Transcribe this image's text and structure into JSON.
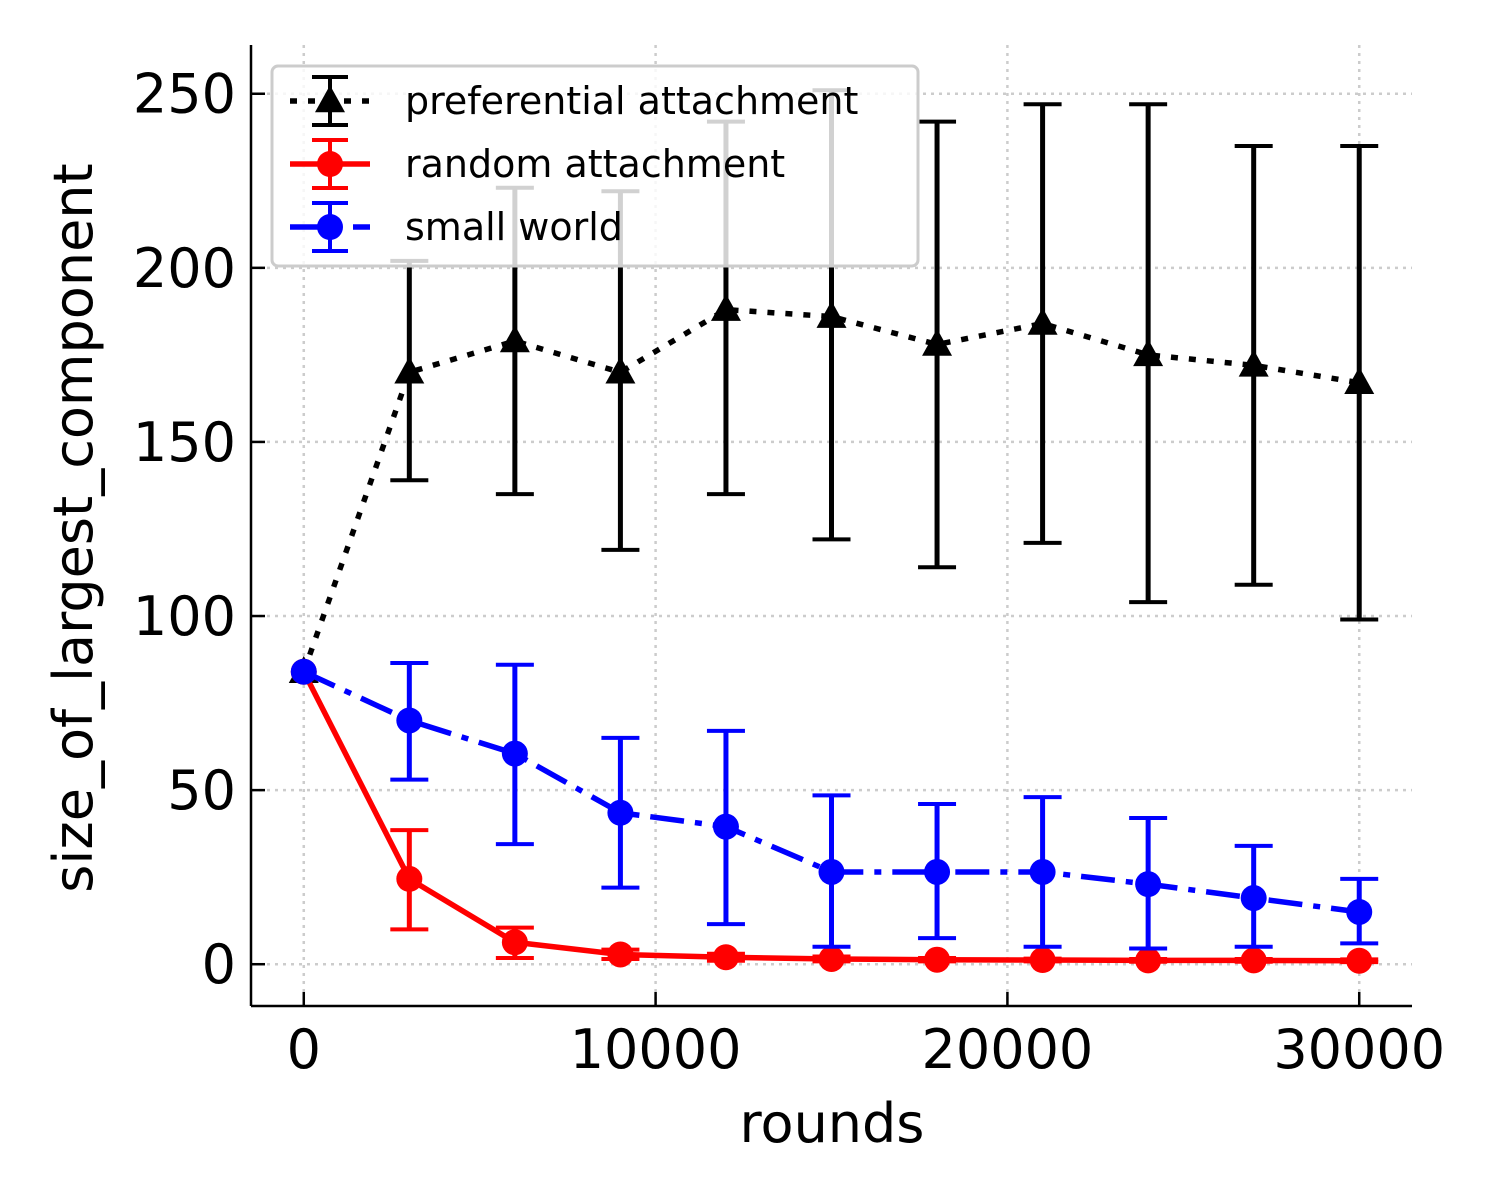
{
  "chart_data": {
    "type": "line",
    "xlabel": "rounds",
    "ylabel": "size_of_largest_component",
    "xlim": [
      -1500,
      31500
    ],
    "ylim": [
      -12,
      264
    ],
    "xticks": [
      0,
      10000,
      20000,
      30000
    ],
    "yticks": [
      0,
      50,
      100,
      150,
      200,
      250
    ],
    "xtick_labels": [
      "0",
      "10000",
      "20000",
      "30000"
    ],
    "ytick_labels": [
      "0",
      "50",
      "100",
      "150",
      "200",
      "250"
    ],
    "grid": true,
    "legend_position": "top-left",
    "x": [
      0,
      3000,
      6000,
      9000,
      12000,
      15000,
      18000,
      21000,
      24000,
      27000,
      30000
    ],
    "series": [
      {
        "name": "preferential attachment",
        "color": "#000000",
        "line_style": "dotted",
        "marker": "triangle",
        "values": [
          84,
          170,
          179,
          170,
          188,
          186,
          178,
          184,
          175,
          172,
          167
        ],
        "err_low": [
          84,
          139,
          135,
          119,
          135,
          122,
          114,
          121,
          104,
          109,
          99
        ],
        "err_high": [
          84,
          202,
          223,
          222,
          242,
          251,
          242,
          247,
          247,
          235,
          235
        ]
      },
      {
        "name": "random attachment",
        "color": "#ff0000",
        "line_style": "solid",
        "marker": "circle",
        "values": [
          84,
          24.5,
          6.3,
          2.8,
          2,
          1.5,
          1.3,
          1.2,
          1.1,
          1.1,
          1
        ],
        "err_low": [
          84,
          10,
          1.8,
          1.5,
          1,
          0.8,
          0.8,
          0.8,
          0.7,
          0.7,
          0.6
        ],
        "err_high": [
          84,
          38.5,
          10.5,
          4.2,
          3,
          2.2,
          1.8,
          1.6,
          1.5,
          1.5,
          1.4
        ]
      },
      {
        "name": "small world",
        "color": "#0000ff",
        "line_style": "dashdot",
        "marker": "circle",
        "values": [
          84,
          70,
          60.5,
          43.5,
          39.5,
          26.5,
          26.5,
          26.5,
          23,
          19,
          15
        ],
        "err_low": [
          84,
          53,
          34.5,
          22,
          11.5,
          5,
          7.5,
          5,
          4.5,
          5,
          6
        ],
        "err_high": [
          84,
          86.5,
          86,
          65,
          67,
          48.5,
          46,
          48,
          42,
          34,
          24.5
        ]
      }
    ]
  }
}
